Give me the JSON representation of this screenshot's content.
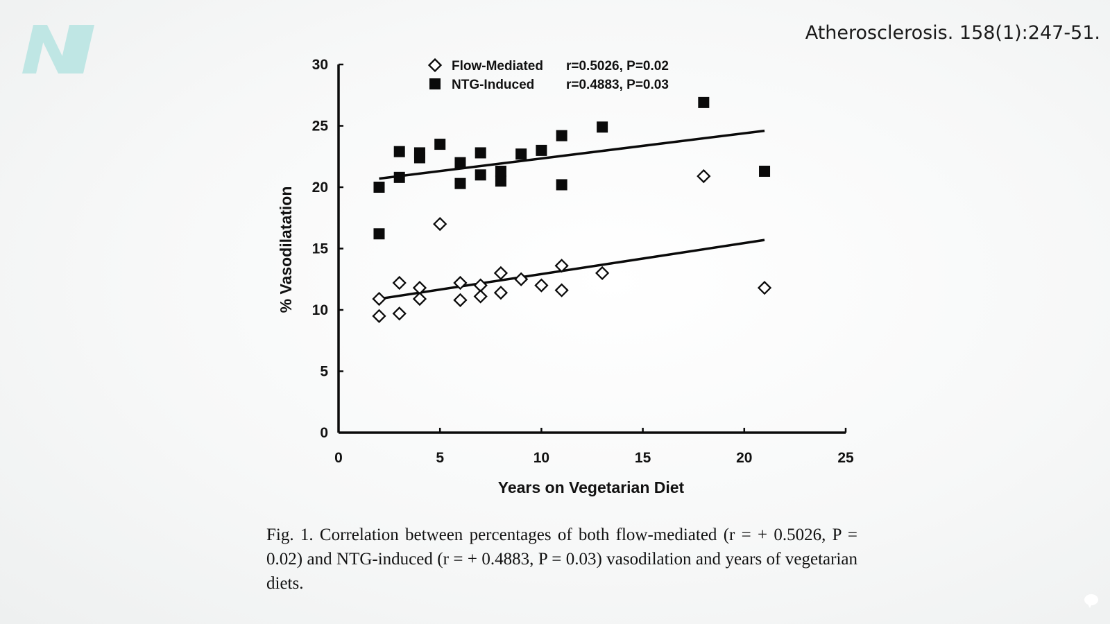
{
  "slide": {
    "citation": "Atherosclerosis. 158(1):247-51.",
    "logo_letter": "N",
    "caption": "Fig. 1. Correlation between percentages of both flow-mediated (r = + 0.5026, P = 0.02) and NTG-induced (r = + 0.4883, P = 0.03) vasodilation and years of vegetarian diets."
  },
  "colors": {
    "logo": "#bfe6e4",
    "ink": "#0a0a0a",
    "background": "#ffffff"
  },
  "chart_data": {
    "type": "scatter",
    "title": "",
    "xlabel": "Years on Vegetarian Diet",
    "ylabel": "% Vasodilatation",
    "xlim": [
      0,
      25
    ],
    "ylim": [
      0,
      30
    ],
    "x_ticks": [
      0,
      5,
      10,
      15,
      20,
      25
    ],
    "y_ticks": [
      0,
      5,
      10,
      15,
      20,
      25,
      30
    ],
    "grid": false,
    "legend_position": "top",
    "series": [
      {
        "name": "Flow-Mediated",
        "stat": "r=0.5026, P=0.02",
        "marker": "open-diamond",
        "points": [
          [
            2,
            10.9
          ],
          [
            2,
            9.5
          ],
          [
            3,
            12.2
          ],
          [
            3,
            9.7
          ],
          [
            4,
            11.8
          ],
          [
            4,
            10.9
          ],
          [
            5,
            17.0
          ],
          [
            6,
            12.2
          ],
          [
            6,
            10.8
          ],
          [
            7,
            12.0
          ],
          [
            7,
            11.1
          ],
          [
            8,
            13.0
          ],
          [
            8,
            11.4
          ],
          [
            9,
            12.5
          ],
          [
            10,
            12.0
          ],
          [
            11,
            13.6
          ],
          [
            11,
            11.6
          ],
          [
            13,
            13.0
          ],
          [
            18,
            20.9
          ],
          [
            21,
            11.8
          ]
        ],
        "trend": [
          [
            2,
            10.9
          ],
          [
            21,
            15.7
          ]
        ]
      },
      {
        "name": "NTG-Induced",
        "stat": "r=0.4883, P=0.03",
        "marker": "filled-square",
        "points": [
          [
            2,
            20.0
          ],
          [
            2,
            16.2
          ],
          [
            3,
            22.9
          ],
          [
            3,
            20.8
          ],
          [
            4,
            22.8
          ],
          [
            4,
            22.4
          ],
          [
            5,
            23.5
          ],
          [
            6,
            22.0
          ],
          [
            6,
            20.3
          ],
          [
            7,
            22.8
          ],
          [
            7,
            21.0
          ],
          [
            8,
            21.3
          ],
          [
            8,
            20.5
          ],
          [
            9,
            22.7
          ],
          [
            10,
            23.0
          ],
          [
            11,
            24.2
          ],
          [
            11,
            20.2
          ],
          [
            13,
            24.9
          ],
          [
            18,
            26.9
          ],
          [
            21,
            21.3
          ]
        ],
        "trend": [
          [
            2,
            20.7
          ],
          [
            21,
            24.6
          ]
        ]
      }
    ]
  }
}
